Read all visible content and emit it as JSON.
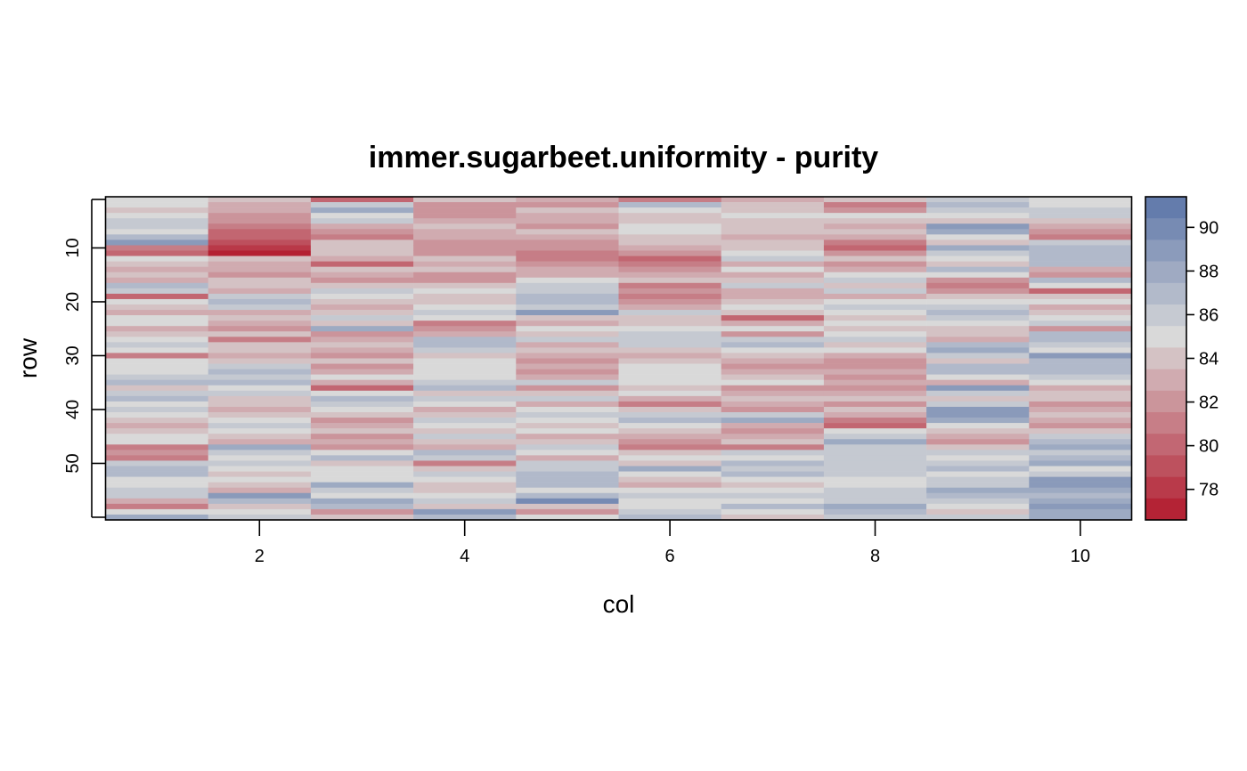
{
  "chart_data": {
    "type": "heatmap",
    "title": "immer.sugarbeet.uniformity - purity",
    "xlabel": "col",
    "ylabel": "row",
    "x_range": [
      0.5,
      10.5
    ],
    "y_range": [
      0.5,
      60.5
    ],
    "y_reversed": true,
    "x_ticks": [
      "2",
      "4",
      "6",
      "8",
      "10"
    ],
    "y_ticks": [
      "10",
      "20",
      "30",
      "40",
      "50"
    ],
    "legend": {
      "position": "right",
      "ticks": [
        "78",
        "80",
        "82",
        "84",
        "86",
        "88",
        "90"
      ],
      "min": 76.6,
      "max": 91.4,
      "low_color": "#B2182B",
      "mid_color": "#D9D9D9",
      "high_color": "#5A74A8",
      "mid_value": 85
    },
    "columns": [
      {
        "name": "1",
        "values": [
          85,
          85,
          84,
          85,
          86,
          86,
          85,
          87,
          89,
          81,
          80,
          85,
          84,
          83,
          84,
          83,
          87,
          86,
          80,
          85,
          84,
          83,
          85,
          85,
          83,
          84,
          85,
          86,
          85,
          81,
          85,
          85,
          85,
          86,
          87,
          84,
          86,
          87,
          85,
          86,
          85,
          84,
          83,
          84,
          85,
          85,
          81,
          82,
          81,
          86,
          87,
          87,
          85,
          85,
          86,
          86,
          83,
          81,
          85,
          88
        ]
      },
      {
        "name": "2",
        "values": [
          84,
          83,
          83,
          82,
          82,
          81,
          80,
          80,
          79,
          78,
          77,
          84,
          83,
          83,
          82,
          84,
          84,
          83,
          86,
          87,
          86,
          83,
          84,
          83,
          82,
          84,
          81,
          84,
          84,
          83,
          84,
          86,
          87,
          86,
          87,
          85,
          86,
          84,
          84,
          83,
          84,
          85,
          86,
          85,
          84,
          83,
          88,
          86,
          85,
          86,
          85,
          84,
          85,
          84,
          83,
          89,
          87,
          84,
          85,
          86
        ]
      },
      {
        "name": "3",
        "values": [
          80,
          86,
          88,
          85,
          86,
          83,
          82,
          81,
          84,
          84,
          84,
          83,
          80,
          84,
          83,
          82,
          84,
          86,
          85,
          84,
          83,
          84,
          86,
          84,
          88,
          82,
          83,
          84,
          83,
          82,
          84,
          82,
          83,
          85,
          83,
          80,
          85,
          87,
          86,
          85,
          84,
          82,
          83,
          84,
          82,
          83,
          82,
          85,
          87,
          84,
          85,
          85,
          85,
          88,
          86,
          85,
          88,
          87,
          82,
          84
        ]
      },
      {
        "name": "4",
        "values": [
          84,
          82,
          82,
          82,
          83,
          84,
          83,
          83,
          82,
          82,
          82,
          84,
          83,
          84,
          82,
          82,
          84,
          85,
          84,
          84,
          85,
          86,
          85,
          81,
          82,
          83,
          87,
          87,
          86,
          84,
          85,
          85,
          85,
          85,
          86,
          87,
          84,
          86,
          85,
          83,
          84,
          86,
          85,
          84,
          86,
          84,
          83,
          87,
          86,
          81,
          84,
          86,
          85,
          84,
          84,
          85,
          86,
          84,
          89,
          87
        ]
      },
      {
        "name": "5",
        "values": [
          83,
          82,
          84,
          83,
          83,
          82,
          84,
          83,
          82,
          82,
          81,
          81,
          82,
          83,
          83,
          85,
          86,
          86,
          87,
          87,
          86,
          89,
          84,
          83,
          85,
          84,
          86,
          83,
          84,
          83,
          82,
          83,
          82,
          83,
          86,
          82,
          84,
          86,
          83,
          85,
          86,
          85,
          84,
          85,
          83,
          84,
          86,
          85,
          83,
          86,
          86,
          87,
          87,
          87,
          85,
          87,
          90,
          84,
          82,
          85
        ]
      },
      {
        "name": "6",
        "values": [
          81,
          87,
          85,
          84,
          84,
          85,
          85,
          84,
          84,
          83,
          82,
          80,
          81,
          82,
          83,
          84,
          81,
          82,
          81,
          82,
          83,
          86,
          84,
          84,
          85,
          86,
          86,
          86,
          84,
          83,
          84,
          85,
          85,
          85,
          85,
          84,
          85,
          83,
          81,
          84,
          86,
          87,
          85,
          84,
          83,
          82,
          81,
          84,
          85,
          84,
          88,
          85,
          84,
          83,
          85,
          86,
          85,
          85,
          86,
          87
        ]
      },
      {
        "name": "7",
        "values": [
          83,
          84,
          84,
          85,
          84,
          84,
          84,
          83,
          84,
          84,
          85,
          86,
          83,
          85,
          83,
          84,
          86,
          83,
          83,
          84,
          85,
          84,
          80,
          83,
          85,
          82,
          86,
          87,
          85,
          84,
          83,
          82,
          83,
          84,
          85,
          82,
          83,
          84,
          83,
          82,
          86,
          88,
          83,
          82,
          83,
          84,
          81,
          86,
          85,
          87,
          86,
          87,
          85,
          84,
          85,
          86,
          85,
          87,
          85,
          84
        ]
      },
      {
        "name": "8",
        "values": [
          84,
          81,
          82,
          85,
          84,
          83,
          84,
          83,
          81,
          80,
          82,
          84,
          82,
          83,
          85,
          86,
          84,
          86,
          83,
          85,
          86,
          85,
          84,
          85,
          84,
          85,
          86,
          84,
          85,
          83,
          82,
          82,
          83,
          82,
          83,
          82,
          83,
          84,
          82,
          84,
          83,
          81,
          80,
          85,
          86,
          88,
          86,
          86,
          86,
          86,
          86,
          86,
          85,
          85,
          86,
          86,
          86,
          88,
          87,
          86
        ]
      },
      {
        "name": "9",
        "values": [
          86,
          87,
          86,
          85,
          84,
          89,
          88,
          85,
          84,
          88,
          86,
          85,
          84,
          87,
          85,
          82,
          81,
          82,
          84,
          85,
          86,
          87,
          86,
          85,
          84,
          84,
          83,
          87,
          88,
          86,
          84,
          87,
          87,
          85,
          83,
          89,
          86,
          84,
          86,
          89,
          89,
          88,
          85,
          84,
          83,
          82,
          84,
          86,
          85,
          86,
          87,
          85,
          86,
          86,
          88,
          87,
          86,
          85,
          84,
          86
        ]
      },
      {
        "name": "10",
        "values": [
          85,
          85,
          86,
          86,
          84,
          83,
          82,
          81,
          86,
          87,
          87,
          87,
          87,
          83,
          82,
          87,
          85,
          80,
          84,
          85,
          83,
          84,
          85,
          86,
          82,
          87,
          87,
          86,
          85,
          89,
          87,
          87,
          87,
          86,
          85,
          83,
          84,
          84,
          82,
          83,
          84,
          83,
          82,
          84,
          86,
          87,
          88,
          86,
          87,
          88,
          85,
          86,
          89,
          89,
          88,
          87,
          88,
          89,
          88,
          88
        ]
      }
    ]
  }
}
